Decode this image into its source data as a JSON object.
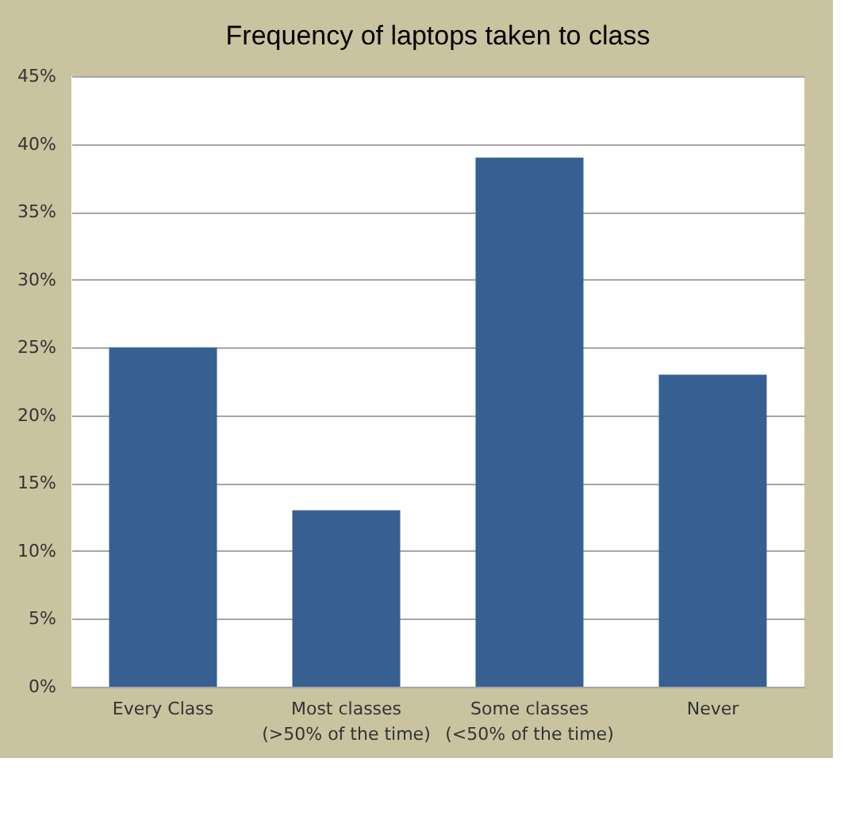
{
  "chart_data": {
    "type": "bar",
    "title": "Frequency of laptops taken to class",
    "categories": [
      "Every Class",
      "Most classes (>50% of the time)",
      "Some classes (<50% of the time)",
      "Never"
    ],
    "values": [
      25,
      13,
      39,
      23
    ],
    "color": "#376092",
    "ylim": [
      0,
      45
    ],
    "yticks": [
      {
        "value": 0,
        "label": "0%"
      },
      {
        "value": 5,
        "label": "5%"
      },
      {
        "value": 10,
        "label": "10%"
      },
      {
        "value": 15,
        "label": "15%"
      },
      {
        "value": 20,
        "label": "20%"
      },
      {
        "value": 25,
        "label": "25%"
      },
      {
        "value": 30,
        "label": "30%"
      },
      {
        "value": 35,
        "label": "35%"
      },
      {
        "value": 40,
        "label": "40%"
      },
      {
        "value": 45,
        "label": "45%"
      }
    ],
    "grid": "y"
  }
}
